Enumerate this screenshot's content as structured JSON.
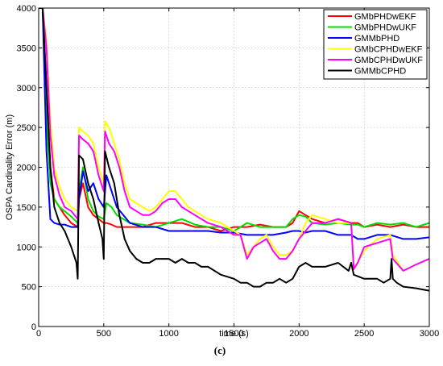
{
  "chart_data": {
    "type": "line",
    "title": "",
    "xlabel": "time (s)",
    "ylabel": "OSPA Cardinality Error (m)",
    "caption": "(c)",
    "xlim": [
      0,
      3000
    ],
    "ylim": [
      0,
      4000
    ],
    "xticks": [
      0,
      500,
      1000,
      1500,
      2000,
      2500,
      3000
    ],
    "yticks": [
      0,
      500,
      1000,
      1500,
      2000,
      2500,
      3000,
      3500,
      4000
    ],
    "grid": true,
    "legend_position": "top-right",
    "series": [
      {
        "name": "GMbPHDwEKF",
        "color": "#ff0000",
        "x": [
          0,
          30,
          60,
          90,
          120,
          160,
          200,
          250,
          300,
          310,
          340,
          380,
          420,
          460,
          500,
          520,
          560,
          600,
          700,
          800,
          900,
          1000,
          1100,
          1200,
          1300,
          1400,
          1500,
          1600,
          1700,
          1800,
          1900,
          1950,
          2000,
          2050,
          2100,
          2200,
          2300,
          2400,
          2450,
          2500,
          2600,
          2700,
          2800,
          2900,
          3000
        ],
        "y": [
          4000,
          4000,
          3000,
          2000,
          1600,
          1500,
          1400,
          1300,
          1250,
          1600,
          1800,
          1500,
          1400,
          1350,
          1300,
          1300,
          1280,
          1250,
          1250,
          1250,
          1300,
          1300,
          1300,
          1250,
          1250,
          1200,
          1250,
          1250,
          1280,
          1250,
          1250,
          1300,
          1450,
          1400,
          1350,
          1300,
          1350,
          1300,
          1300,
          1250,
          1280,
          1250,
          1280,
          1250,
          1250
        ]
      },
      {
        "name": "GMbPHDwUKF",
        "color": "#00dd00",
        "x": [
          0,
          30,
          60,
          90,
          120,
          160,
          200,
          250,
          300,
          310,
          340,
          380,
          420,
          460,
          500,
          520,
          560,
          600,
          700,
          800,
          900,
          1000,
          1100,
          1200,
          1300,
          1400,
          1500,
          1600,
          1700,
          1800,
          1900,
          1950,
          2000,
          2050,
          2100,
          2200,
          2300,
          2400,
          2450,
          2500,
          2600,
          2700,
          2800,
          2900,
          3000
        ],
        "y": [
          4000,
          4000,
          2600,
          1800,
          1600,
          1500,
          1450,
          1380,
          1300,
          1700,
          2000,
          1600,
          1450,
          1380,
          1350,
          1550,
          1500,
          1400,
          1300,
          1280,
          1250,
          1300,
          1350,
          1280,
          1250,
          1250,
          1200,
          1300,
          1250,
          1250,
          1250,
          1350,
          1400,
          1380,
          1300,
          1280,
          1300,
          1280,
          1280,
          1250,
          1300,
          1280,
          1300,
          1250,
          1300
        ]
      },
      {
        "name": "GMMbPHD",
        "color": "#0000ff",
        "x": [
          0,
          30,
          60,
          90,
          120,
          160,
          200,
          250,
          300,
          310,
          340,
          380,
          420,
          460,
          500,
          520,
          560,
          600,
          700,
          800,
          900,
          1000,
          1100,
          1200,
          1300,
          1400,
          1500,
          1600,
          1700,
          1800,
          1900,
          1950,
          2000,
          2050,
          2100,
          2200,
          2300,
          2400,
          2450,
          2500,
          2600,
          2700,
          2800,
          2900,
          3000
        ],
        "y": [
          4000,
          4000,
          2200,
          1350,
          1300,
          1280,
          1280,
          1250,
          1250,
          1600,
          1950,
          1700,
          1800,
          1600,
          1500,
          1900,
          1700,
          1500,
          1300,
          1250,
          1250,
          1200,
          1200,
          1200,
          1200,
          1180,
          1180,
          1150,
          1150,
          1150,
          1180,
          1200,
          1200,
          1180,
          1200,
          1200,
          1150,
          1150,
          1100,
          1100,
          1150,
          1150,
          1100,
          1100,
          1120
        ]
      },
      {
        "name": "GMbCPHDwEKF",
        "color": "#ffff00",
        "x": [
          0,
          30,
          60,
          90,
          120,
          160,
          200,
          250,
          300,
          310,
          340,
          380,
          420,
          460,
          500,
          510,
          540,
          580,
          620,
          660,
          700,
          750,
          800,
          850,
          900,
          950,
          1000,
          1050,
          1100,
          1150,
          1200,
          1250,
          1300,
          1400,
          1500,
          1550,
          1600,
          1650,
          1700,
          1750,
          1800,
          1850,
          1900,
          1950,
          2000,
          2050,
          2100,
          2200,
          2300,
          2400,
          2420,
          2450,
          2500,
          2600,
          2700,
          2720,
          2800,
          2900,
          3000
        ],
        "y": [
          4000,
          4000,
          3600,
          2600,
          2000,
          1750,
          1600,
          1500,
          1450,
          2500,
          2450,
          2400,
          2300,
          2000,
          1800,
          2580,
          2500,
          2300,
          2100,
          1800,
          1600,
          1550,
          1500,
          1450,
          1500,
          1600,
          1700,
          1700,
          1600,
          1500,
          1450,
          1400,
          1350,
          1300,
          1200,
          1150,
          900,
          1000,
          1100,
          1150,
          1000,
          900,
          900,
          950,
          1100,
          1300,
          1400,
          1350,
          1300,
          1300,
          750,
          800,
          950,
          1100,
          1150,
          900,
          700,
          780,
          850
        ]
      },
      {
        "name": "GMbCPHDwUKF",
        "color": "#ff00ff",
        "x": [
          0,
          30,
          60,
          90,
          120,
          160,
          200,
          250,
          300,
          310,
          340,
          380,
          420,
          460,
          500,
          510,
          540,
          580,
          620,
          660,
          700,
          750,
          800,
          850,
          900,
          950,
          1000,
          1050,
          1100,
          1150,
          1200,
          1250,
          1300,
          1400,
          1500,
          1550,
          1600,
          1650,
          1700,
          1750,
          1800,
          1850,
          1900,
          1950,
          2000,
          2050,
          2100,
          2200,
          2300,
          2400,
          2420,
          2450,
          2500,
          2600,
          2700,
          2720,
          2800,
          2900,
          3000
        ],
        "y": [
          4000,
          4000,
          3500,
          2400,
          1900,
          1650,
          1500,
          1450,
          1350,
          2400,
          2350,
          2300,
          2200,
          1900,
          1700,
          2450,
          2300,
          2200,
          2000,
          1700,
          1500,
          1450,
          1400,
          1400,
          1450,
          1550,
          1600,
          1600,
          1500,
          1450,
          1400,
          1350,
          1300,
          1250,
          1150,
          1150,
          850,
          1000,
          1050,
          1100,
          950,
          850,
          850,
          950,
          1100,
          1200,
          1300,
          1300,
          1350,
          1300,
          720,
          800,
          1000,
          1050,
          1100,
          850,
          700,
          780,
          850
        ]
      },
      {
        "name": "GMMbCPHD",
        "color": "#000000",
        "x": [
          0,
          30,
          60,
          90,
          120,
          160,
          200,
          250,
          290,
          300,
          310,
          340,
          380,
          420,
          460,
          490,
          500,
          510,
          540,
          580,
          620,
          660,
          700,
          750,
          800,
          850,
          900,
          950,
          1000,
          1050,
          1100,
          1150,
          1200,
          1250,
          1300,
          1400,
          1500,
          1550,
          1600,
          1650,
          1700,
          1750,
          1800,
          1850,
          1900,
          1950,
          2000,
          2050,
          2100,
          2200,
          2300,
          2380,
          2400,
          2420,
          2500,
          2600,
          2650,
          2700,
          2710,
          2720,
          2750,
          2800,
          2900,
          3000
        ],
        "y": [
          4000,
          4000,
          3000,
          2000,
          1500,
          1300,
          1200,
          1000,
          800,
          600,
          2150,
          2100,
          1800,
          1600,
          1300,
          1100,
          850,
          2200,
          2000,
          1800,
          1400,
          1100,
          950,
          850,
          800,
          800,
          850,
          850,
          850,
          800,
          850,
          800,
          800,
          750,
          750,
          650,
          600,
          550,
          550,
          500,
          500,
          550,
          550,
          600,
          550,
          600,
          750,
          800,
          750,
          750,
          800,
          700,
          800,
          650,
          600,
          600,
          550,
          600,
          850,
          600,
          550,
          500,
          480,
          450
        ]
      }
    ]
  }
}
